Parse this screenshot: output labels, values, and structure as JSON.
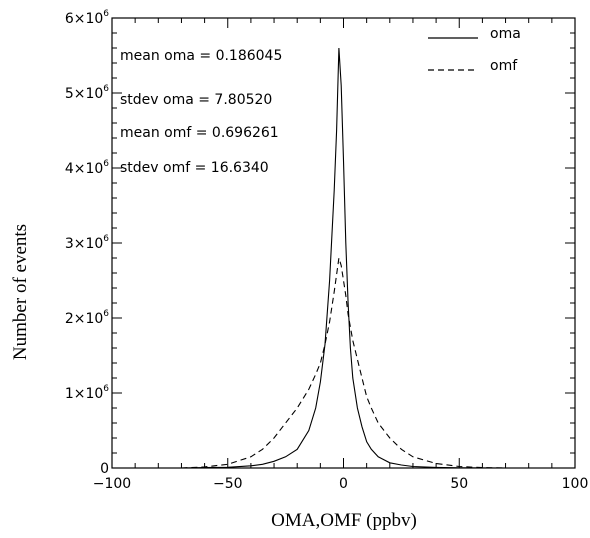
{
  "chart_data": {
    "type": "line",
    "xlabel": "OMA,OMF (ppbv)",
    "ylabel": "Number of events",
    "xlim": [
      -100,
      100
    ],
    "ylim": [
      0,
      6000000
    ],
    "x_ticks": [
      {
        "value": -100,
        "label": "−100"
      },
      {
        "value": -50,
        "label": "−50"
      },
      {
        "value": 0,
        "label": "0"
      },
      {
        "value": 50,
        "label": "50"
      },
      {
        "value": 100,
        "label": "100"
      }
    ],
    "y_ticks": [
      {
        "value": 0,
        "base": "0",
        "exp": ""
      },
      {
        "value": 1000000,
        "base": "1×10",
        "exp": "6"
      },
      {
        "value": 2000000,
        "base": "2×10",
        "exp": "6"
      },
      {
        "value": 3000000,
        "base": "3×10",
        "exp": "6"
      },
      {
        "value": 4000000,
        "base": "4×10",
        "exp": "6"
      },
      {
        "value": 5000000,
        "base": "5×10",
        "exp": "6"
      },
      {
        "value": 6000000,
        "base": "6×10",
        "exp": "6"
      }
    ],
    "legend_position": "top-right",
    "annotations": [
      "mean oma = 0.186045",
      "stdev oma = 7.80520",
      "mean omf = 0.696261",
      "stdev omf = 16.6340"
    ],
    "series": [
      {
        "name": "oma",
        "style": "solid",
        "x": [
          -70,
          -60,
          -50,
          -40,
          -35,
          -30,
          -25,
          -20,
          -15,
          -12,
          -10,
          -8,
          -6,
          -4,
          -3,
          -2,
          -1,
          0,
          1,
          2,
          3,
          4,
          6,
          8,
          10,
          12,
          15,
          20,
          25,
          30,
          40,
          50,
          60,
          70
        ],
        "y": [
          0,
          5000,
          10000,
          30000,
          50000,
          90000,
          150000,
          250000,
          500000,
          800000,
          1150000,
          1650000,
          2500000,
          3700000,
          4500000,
          5600000,
          5100000,
          4100000,
          3000000,
          2200000,
          1600000,
          1200000,
          800000,
          550000,
          350000,
          250000,
          150000,
          70000,
          40000,
          20000,
          8000,
          3000,
          1000,
          0
        ]
      },
      {
        "name": "omf",
        "style": "dashed",
        "x": [
          -70,
          -60,
          -50,
          -40,
          -35,
          -30,
          -25,
          -20,
          -15,
          -12,
          -10,
          -8,
          -6,
          -4,
          -2,
          -1,
          0,
          1,
          2,
          4,
          6,
          8,
          10,
          12,
          15,
          20,
          25,
          30,
          40,
          50,
          60,
          70
        ],
        "y": [
          0,
          15000,
          50000,
          150000,
          250000,
          400000,
          600000,
          800000,
          1050000,
          1250000,
          1400000,
          1650000,
          1950000,
          2350000,
          2800000,
          2700000,
          2500000,
          2300000,
          2050000,
          1700000,
          1450000,
          1200000,
          950000,
          800000,
          600000,
          400000,
          250000,
          150000,
          60000,
          20000,
          5000,
          0
        ]
      }
    ]
  }
}
